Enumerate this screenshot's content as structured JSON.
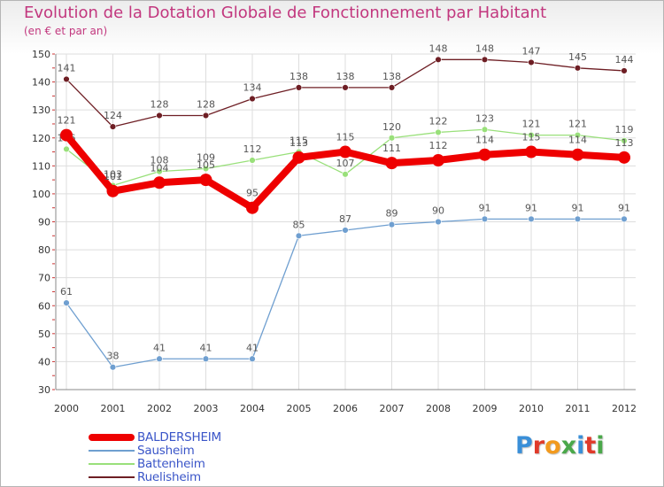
{
  "chart_data": {
    "type": "line",
    "title": "Evolution de la Dotation Globale de Fonctionnement par Habitant",
    "subtitle": "(en € et par an)",
    "x": [
      "2000",
      "2001",
      "2002",
      "2003",
      "2004",
      "2005",
      "2006",
      "2007",
      "2008",
      "2009",
      "2010",
      "2011",
      "2012"
    ],
    "ylim": [
      30,
      150
    ],
    "yticks": [
      30,
      40,
      50,
      60,
      70,
      80,
      90,
      100,
      110,
      120,
      130,
      140,
      150
    ],
    "grid": true,
    "series": [
      {
        "name": "Ruelisheim",
        "color": "#6e1e24",
        "values": [
          141,
          124,
          128,
          128,
          134,
          138,
          138,
          138,
          148,
          148,
          147,
          145,
          144
        ],
        "labels": [
          "141",
          "124",
          "128",
          "128",
          "134",
          "138",
          "138",
          "138",
          "148",
          "148",
          "147",
          "145",
          "144"
        ]
      },
      {
        "name": "Battenheim",
        "color": "#99e07a",
        "values": [
          116,
          103,
          108,
          109,
          112,
          115,
          107,
          120,
          122,
          123,
          121,
          121,
          119
        ],
        "labels": [
          "116",
          "103",
          "108",
          "109",
          "112",
          "115",
          "107",
          "120",
          "122",
          "123",
          "121",
          "121",
          "119"
        ]
      },
      {
        "name": "Sausheim",
        "color": "#6f9fd0",
        "values": [
          61,
          38,
          41,
          41,
          41,
          85,
          87,
          89,
          90,
          91,
          91,
          91,
          91
        ],
        "labels": [
          "61",
          "38",
          "41",
          "41",
          "41",
          "85",
          "87",
          "89",
          "90",
          "91",
          "91",
          "91",
          "91"
        ]
      },
      {
        "name": "BALDERSHEIM",
        "color": "#ee0000",
        "values": [
          121,
          101,
          104,
          105,
          95,
          113,
          115,
          111,
          112,
          114,
          115,
          114,
          113
        ],
        "labels": [
          "121",
          "101",
          "104",
          "105",
          "95",
          "113",
          "115",
          "111",
          "112",
          "114",
          "115",
          "114",
          "113"
        ]
      }
    ],
    "legend": [
      "BALDERSHEIM",
      "Sausheim",
      "Battenheim",
      "Ruelisheim"
    ]
  },
  "logo": {
    "letters": [
      {
        "ch": "P",
        "color": "#3a8fd8"
      },
      {
        "ch": "r",
        "color": "#e03a2a"
      },
      {
        "ch": "o",
        "color": "#f29a1e"
      },
      {
        "ch": "x",
        "color": "#4aa84a"
      },
      {
        "ch": "i",
        "color": "#3a8fd8"
      },
      {
        "ch": "t",
        "color": "#e03a2a"
      },
      {
        "ch": "i",
        "color": "#4aa84a"
      }
    ]
  }
}
